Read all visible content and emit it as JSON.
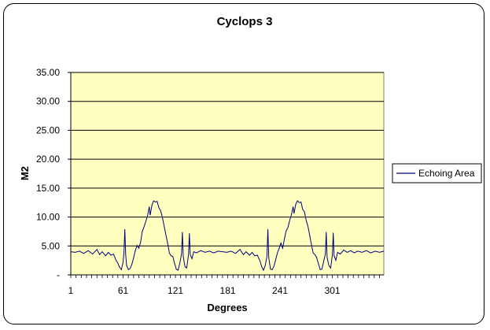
{
  "chart_data": {
    "type": "line",
    "title": "Cyclops 3",
    "xlabel": "Degrees",
    "ylabel": "M2",
    "ylim": [
      0,
      35
    ],
    "y_ticks": [
      {
        "value": 0,
        "label": "-"
      },
      {
        "value": 5,
        "label": "5.00"
      },
      {
        "value": 10,
        "label": "10.00"
      },
      {
        "value": 15,
        "label": "15.00"
      },
      {
        "value": 20,
        "label": "20.00"
      },
      {
        "value": 25,
        "label": "25.00"
      },
      {
        "value": 30,
        "label": "30.00"
      },
      {
        "value": 35,
        "label": "35.00"
      }
    ],
    "xlim": [
      1,
      360
    ],
    "x_ticks": [
      1,
      61,
      121,
      181,
      241,
      301
    ],
    "grid": "horizontal",
    "plot_background": "#ffffc0",
    "legend_position": "right",
    "series": [
      {
        "name": "Echoing Area",
        "color": "#000080",
        "points": [
          [
            1,
            4.0
          ],
          [
            6,
            3.9
          ],
          [
            11,
            4.1
          ],
          [
            16,
            3.7
          ],
          [
            21,
            4.2
          ],
          [
            26,
            3.6
          ],
          [
            31,
            4.4
          ],
          [
            34,
            3.5
          ],
          [
            37,
            4.0
          ],
          [
            41,
            3.3
          ],
          [
            44,
            3.9
          ],
          [
            47,
            3.4
          ],
          [
            50,
            3.6
          ],
          [
            53,
            2.5
          ],
          [
            55,
            2.0
          ],
          [
            57,
            1.3
          ],
          [
            59,
            0.9
          ],
          [
            61,
            2.2
          ],
          [
            62,
            3.8
          ],
          [
            63,
            7.9
          ],
          [
            64,
            3.5
          ],
          [
            65,
            1.6
          ],
          [
            67,
            0.9
          ],
          [
            69,
            1.1
          ],
          [
            71,
            1.8
          ],
          [
            73,
            2.9
          ],
          [
            75,
            4.2
          ],
          [
            77,
            5.1
          ],
          [
            79,
            4.6
          ],
          [
            81,
            5.6
          ],
          [
            83,
            7.5
          ],
          [
            85,
            8.3
          ],
          [
            87,
            9.2
          ],
          [
            89,
            10.2
          ],
          [
            91,
            11.8
          ],
          [
            92,
            10.3
          ],
          [
            94,
            12.0
          ],
          [
            96,
            12.8
          ],
          [
            98,
            12.6
          ],
          [
            100,
            12.7
          ],
          [
            102,
            11.6
          ],
          [
            104,
            11.1
          ],
          [
            106,
            10.0
          ],
          [
            108,
            8.5
          ],
          [
            110,
            7.0
          ],
          [
            112,
            5.5
          ],
          [
            114,
            3.8
          ],
          [
            116,
            3.3
          ],
          [
            118,
            3.2
          ],
          [
            120,
            2.0
          ],
          [
            122,
            1.0
          ],
          [
            124,
            0.8
          ],
          [
            126,
            2.0
          ],
          [
            128,
            3.6
          ],
          [
            129,
            7.4
          ],
          [
            130,
            3.2
          ],
          [
            132,
            1.4
          ],
          [
            134,
            1.2
          ],
          [
            136,
            3.5
          ],
          [
            137,
            7.2
          ],
          [
            138,
            3.5
          ],
          [
            140,
            2.8
          ],
          [
            142,
            4.0
          ],
          [
            145,
            3.8
          ],
          [
            150,
            4.2
          ],
          [
            155,
            3.9
          ],
          [
            160,
            4.1
          ],
          [
            165,
            3.8
          ],
          [
            170,
            4.1
          ],
          [
            175,
            4.0
          ],
          [
            180,
            3.9
          ],
          [
            185,
            4.1
          ],
          [
            190,
            3.7
          ],
          [
            195,
            4.4
          ],
          [
            199,
            3.5
          ],
          [
            202,
            4.0
          ],
          [
            206,
            3.4
          ],
          [
            209,
            3.9
          ],
          [
            212,
            3.3
          ],
          [
            215,
            3.4
          ],
          [
            218,
            2.4
          ],
          [
            220,
            1.4
          ],
          [
            222,
            0.8
          ],
          [
            224,
            1.6
          ],
          [
            226,
            3.2
          ],
          [
            227,
            7.9
          ],
          [
            228,
            3.0
          ],
          [
            230,
            1.0
          ],
          [
            232,
            0.9
          ],
          [
            234,
            1.5
          ],
          [
            236,
            2.6
          ],
          [
            238,
            3.8
          ],
          [
            240,
            4.6
          ],
          [
            242,
            5.5
          ],
          [
            244,
            4.6
          ],
          [
            246,
            6.2
          ],
          [
            248,
            7.6
          ],
          [
            250,
            8.2
          ],
          [
            252,
            9.4
          ],
          [
            254,
            10.4
          ],
          [
            256,
            11.8
          ],
          [
            257,
            10.6
          ],
          [
            259,
            12.2
          ],
          [
            261,
            12.8
          ],
          [
            263,
            12.5
          ],
          [
            265,
            12.6
          ],
          [
            267,
            11.3
          ],
          [
            269,
            10.9
          ],
          [
            271,
            9.4
          ],
          [
            273,
            8.4
          ],
          [
            275,
            6.8
          ],
          [
            277,
            5.2
          ],
          [
            279,
            3.8
          ],
          [
            281,
            3.5
          ],
          [
            283,
            3.0
          ],
          [
            285,
            1.9
          ],
          [
            287,
            0.9
          ],
          [
            289,
            1.0
          ],
          [
            291,
            2.3
          ],
          [
            293,
            3.6
          ],
          [
            294,
            7.4
          ],
          [
            295,
            3.0
          ],
          [
            297,
            1.6
          ],
          [
            299,
            1.2
          ],
          [
            301,
            3.4
          ],
          [
            302,
            7.3
          ],
          [
            303,
            3.3
          ],
          [
            305,
            2.5
          ],
          [
            307,
            3.9
          ],
          [
            310,
            3.6
          ],
          [
            314,
            4.3
          ],
          [
            318,
            3.9
          ],
          [
            322,
            4.2
          ],
          [
            326,
            3.8
          ],
          [
            330,
            4.1
          ],
          [
            335,
            3.9
          ],
          [
            340,
            4.2
          ],
          [
            345,
            3.8
          ],
          [
            350,
            4.1
          ],
          [
            355,
            3.9
          ],
          [
            360,
            4.1
          ]
        ]
      }
    ]
  }
}
